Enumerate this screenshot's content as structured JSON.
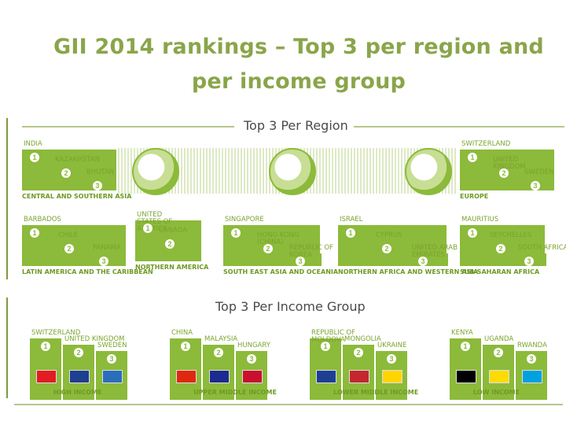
{
  "title": "GII 2014 rankings – Top 3 per region and per income group",
  "sections": {
    "region_title": "Top 3 Per Region",
    "income_title": "Top 3 Per Income Group"
  },
  "regions": [
    {
      "label": "CENTRAL AND SOUTHERN ASIA",
      "countries": [
        "INDIA",
        "KAZAKHSTAN",
        "BHUTAN"
      ]
    },
    {
      "label": "EUROPE",
      "countries": [
        "SWITZERLAND",
        "UNITED KINGDOM",
        "SWEDEN"
      ]
    },
    {
      "label": "LATIN AMERICA AND THE CARIBBEAN",
      "countries": [
        "BARBADOS",
        "CHILE",
        "PANAMA"
      ]
    },
    {
      "label": "NORTHERN AMERICA",
      "countries": [
        "UNITED STATES OF AMERICA",
        "CANADA"
      ]
    },
    {
      "label": "SOUTH EAST ASIA AND OCEANIA",
      "countries": [
        "SINGAPORE",
        "HONG KONG (CHINA)",
        "REPUBLIC OF KOREA"
      ]
    },
    {
      "label": "NORTHERN AFRICA AND WESTERN ASIA",
      "countries": [
        "ISRAEL",
        "CYPRUS",
        "UNITED ARAB EMIRATES"
      ]
    },
    {
      "label": "SUB-SAHARAN AFRICA",
      "countries": [
        "MAURITIUS",
        "SEYCHELLES",
        "SOUTH AFRICA"
      ]
    }
  ],
  "income_groups": [
    {
      "label": "HIGH INCOME",
      "countries": [
        "SWITZERLAND",
        "UNITED KINGDOM",
        "SWEDEN"
      ]
    },
    {
      "label": "UPPER MIDDLE INCOME",
      "countries": [
        "CHINA",
        "MALAYSIA",
        "HUNGARY"
      ]
    },
    {
      "label": "LOWER MIDDLE INCOME",
      "countries": [
        "REPUBLIC OF MOLDOVA",
        "MONGOLIA",
        "UKRAINE"
      ]
    },
    {
      "label": "LOW INCOME",
      "countries": [
        "KENYA",
        "UGANDA",
        "RWANDA"
      ]
    }
  ],
  "ranks": [
    "1",
    "2",
    "3"
  ],
  "colors": {
    "green": "#8cba3a",
    "title_green": "#8aa54a"
  }
}
